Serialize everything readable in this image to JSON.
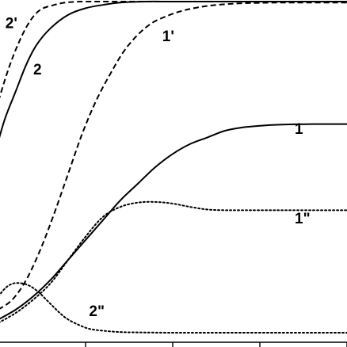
{
  "chart_data": {
    "type": "line",
    "title": "",
    "xlabel": "",
    "ylabel": "",
    "xlim": [
      0,
      1
    ],
    "ylim": [
      0,
      1
    ],
    "grid": false,
    "legend": "none",
    "series": [
      {
        "name": "2'",
        "key": "s2prime",
        "style": "dashed",
        "x": [
          0.0,
          0.03,
          0.06,
          0.09,
          0.12,
          0.16,
          0.2,
          0.25,
          0.32,
          0.4,
          0.5,
          0.6,
          0.8,
          1.0
        ],
        "y": [
          0.7,
          0.8,
          0.88,
          0.94,
          0.975,
          0.99,
          0.998,
          1.0,
          1.0,
          1.0,
          1.0,
          1.0,
          1.0,
          1.0
        ]
      },
      {
        "name": "2",
        "key": "s2",
        "style": "solid",
        "x": [
          0.0,
          0.02,
          0.05,
          0.08,
          0.11,
          0.15,
          0.2,
          0.25,
          0.3,
          0.35,
          0.42,
          0.5,
          0.6,
          0.8,
          1.0
        ],
        "y": [
          0.58,
          0.65,
          0.73,
          0.81,
          0.87,
          0.92,
          0.96,
          0.98,
          0.99,
          0.997,
          1.0,
          1.0,
          1.0,
          1.0,
          1.0
        ]
      },
      {
        "name": "1'",
        "key": "s1prime",
        "style": "dashed",
        "x": [
          0.0,
          0.04,
          0.08,
          0.12,
          0.16,
          0.2,
          0.24,
          0.28,
          0.32,
          0.36,
          0.4,
          0.44,
          0.48,
          0.52,
          0.56,
          0.6,
          0.65,
          0.7,
          0.8,
          0.9,
          1.0
        ],
        "y": [
          0.07,
          0.1,
          0.16,
          0.25,
          0.36,
          0.48,
          0.6,
          0.7,
          0.78,
          0.85,
          0.9,
          0.935,
          0.955,
          0.97,
          0.98,
          0.987,
          0.992,
          0.995,
          0.997,
          0.997,
          0.997
        ]
      },
      {
        "name": "1",
        "key": "s1",
        "style": "solid",
        "x": [
          0.0,
          0.05,
          0.1,
          0.15,
          0.2,
          0.25,
          0.3,
          0.35,
          0.4,
          0.45,
          0.5,
          0.55,
          0.6,
          0.65,
          0.7,
          0.75,
          0.8,
          0.9,
          1.0
        ],
        "y": [
          0.04,
          0.07,
          0.11,
          0.16,
          0.22,
          0.28,
          0.34,
          0.4,
          0.45,
          0.5,
          0.54,
          0.57,
          0.59,
          0.61,
          0.62,
          0.625,
          0.628,
          0.63,
          0.63
        ]
      },
      {
        "name": "1\"",
        "key": "s1dprime",
        "style": "dotted",
        "x": [
          0.0,
          0.05,
          0.1,
          0.15,
          0.2,
          0.25,
          0.3,
          0.35,
          0.4,
          0.45,
          0.5,
          0.55,
          0.6,
          0.65,
          0.7,
          0.8,
          0.9,
          1.0
        ],
        "y": [
          0.03,
          0.06,
          0.1,
          0.15,
          0.22,
          0.29,
          0.35,
          0.38,
          0.393,
          0.395,
          0.39,
          0.38,
          0.372,
          0.37,
          0.37,
          0.37,
          0.37,
          0.37
        ]
      },
      {
        "name": "2\"",
        "key": "s2dprime",
        "style": "dotted",
        "x": [
          0.0,
          0.02,
          0.04,
          0.06,
          0.08,
          0.1,
          0.12,
          0.14,
          0.16,
          0.18,
          0.2,
          0.23,
          0.26,
          0.3,
          0.35,
          0.4,
          0.5,
          0.6,
          0.8,
          1.0
        ],
        "y": [
          0.11,
          0.135,
          0.148,
          0.15,
          0.146,
          0.135,
          0.118,
          0.097,
          0.076,
          0.056,
          0.04,
          0.024,
          0.012,
          0.006,
          0.002,
          0.001,
          0.0,
          0.0,
          0.0,
          0.0
        ]
      }
    ],
    "labels": [
      {
        "key": "s2prime",
        "text": "2'",
        "x": 0.02,
        "y": 0.92
      },
      {
        "key": "s2",
        "text": "2",
        "x": 0.1,
        "y": 0.78
      },
      {
        "key": "s1prime",
        "text": "1'",
        "x": 0.47,
        "y": 0.88
      },
      {
        "key": "s1",
        "text": "1",
        "x": 0.85,
        "y": 0.6
      },
      {
        "key": "s1dprime",
        "text": "1\"",
        "x": 0.85,
        "y": 0.33
      },
      {
        "key": "s2dprime",
        "text": "2\"",
        "x": 0.26,
        "y": 0.05
      }
    ],
    "xticks": [
      0.0,
      0.25,
      0.5,
      0.75,
      1.0
    ]
  }
}
